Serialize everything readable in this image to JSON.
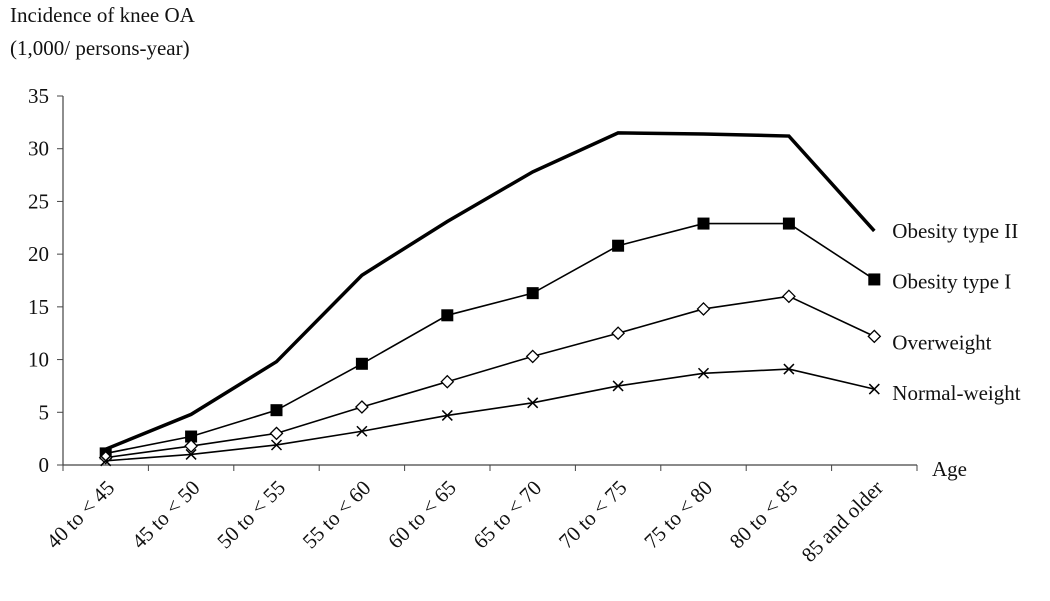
{
  "chart_data": {
    "type": "line",
    "ylabel": [
      "Incidence of knee OA",
      "(1,000/ persons-year)"
    ],
    "xlabel": "Age",
    "categories": [
      "40 to < 45",
      "45 to < 50",
      "50 to < 55",
      "55 to < 60",
      "60 to < 65",
      "65 to < 70",
      "70 to < 75",
      "75 to < 80",
      "80 to < 85",
      "85 and older"
    ],
    "ylim": [
      0,
      35
    ],
    "yticks": [
      0,
      5,
      10,
      15,
      20,
      25,
      30,
      35
    ],
    "grid": false,
    "series": [
      {
        "name": "Obesity type II",
        "marker": "none",
        "line_width": "thick",
        "values": [
          1.5,
          4.8,
          9.8,
          18.0,
          23.1,
          27.8,
          31.5,
          31.4,
          31.2,
          22.2
        ]
      },
      {
        "name": "Obesity type I",
        "marker": "square",
        "values": [
          1.1,
          2.7,
          5.2,
          9.6,
          14.2,
          16.3,
          20.8,
          22.9,
          22.9,
          17.6
        ]
      },
      {
        "name": "Overweight",
        "marker": "diamond",
        "values": [
          0.7,
          1.8,
          3.0,
          5.5,
          7.9,
          10.3,
          12.5,
          14.8,
          16.0,
          12.2
        ]
      },
      {
        "name": "Normal-weight",
        "marker": "x",
        "values": [
          0.4,
          1.0,
          1.9,
          3.2,
          4.7,
          5.9,
          7.5,
          8.7,
          9.1,
          7.2
        ]
      }
    ]
  }
}
